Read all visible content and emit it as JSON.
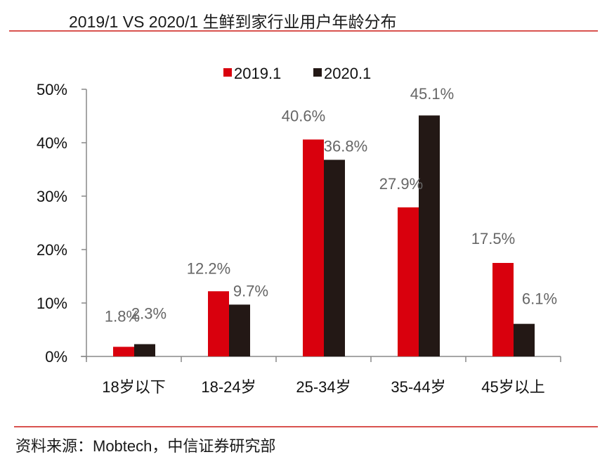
{
  "header": {
    "title": "2019/1 VS 2020/1  生鲜到家行业用户年龄分布"
  },
  "footer": {
    "source": "资料来源：Mobtech，中信证券研究部"
  },
  "colors": {
    "series_2019": "#d9000d",
    "series_2020": "#231815",
    "axis": "#888888",
    "data_label": "#666666",
    "rule": "#d9534f"
  },
  "chart_data": {
    "type": "bar",
    "title": "2019/1 VS 2020/1  生鲜到家行业用户年龄分布",
    "xlabel": "",
    "ylabel": "",
    "ylim": [
      0,
      50
    ],
    "yticks": [
      0,
      10,
      20,
      30,
      40,
      50
    ],
    "ytick_labels": [
      "0%",
      "10%",
      "20%",
      "30%",
      "40%",
      "50%"
    ],
    "grid": false,
    "legend_position": "top-center",
    "categories": [
      "18岁以下",
      "18-24岁",
      "25-34岁",
      "35-44岁",
      "45岁以上"
    ],
    "series": [
      {
        "name": "2019.1",
        "color": "#d9000d",
        "values": [
          1.8,
          12.2,
          40.6,
          27.9,
          17.5
        ],
        "labels": [
          "1.8%",
          "12.2%",
          "40.6%",
          "27.9%",
          "17.5%"
        ]
      },
      {
        "name": "2020.1",
        "color": "#231815",
        "values": [
          2.3,
          9.7,
          36.8,
          45.1,
          6.1
        ],
        "labels": [
          "2.3%",
          "9.7%",
          "36.8%",
          "45.1%",
          "6.1%"
        ]
      }
    ]
  }
}
